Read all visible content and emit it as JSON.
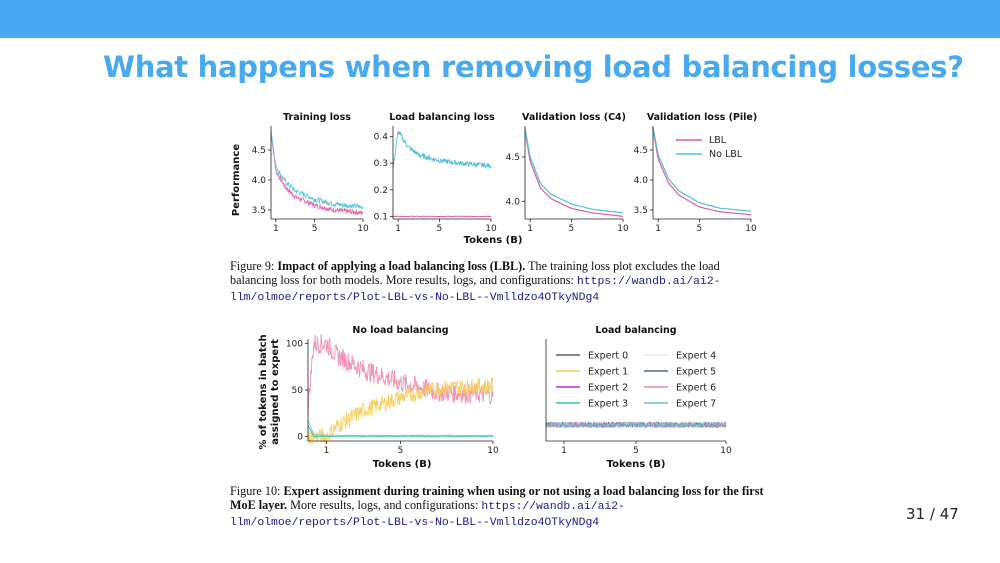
{
  "slide": {
    "title": "What happens when removing load balancing losses?",
    "page_current": "31",
    "page_sep": "/",
    "page_total": "47"
  },
  "figure9": {
    "caption_label": "Figure 9:",
    "caption_bold": "Impact of applying a load balancing loss (LBL).",
    "caption_text": "The training loss plot excludes the load balancing loss for both models. More results, logs, and configurations:",
    "caption_url": "https://wandb.ai/ai2-llm/olmoe/reports/Plot-LBL-vs-No-LBL--Vmlldzo4OTkyNDg4",
    "ylabel": "Performance",
    "xlabel": "Tokens (B)",
    "legend": [
      {
        "name": "LBL",
        "color": "#e05a9e"
      },
      {
        "name": "No LBL",
        "color": "#4fc0dc"
      }
    ]
  },
  "figure10": {
    "caption_label": "Figure 10:",
    "caption_bold": "Expert assignment during training when using or not using a load balancing loss for the first MoE layer.",
    "caption_text": "More results, logs, and configurations:",
    "caption_url": "https://wandb.ai/ai2-llm/olmoe/reports/Plot-LBL-vs-No-LBL--Vmlldzo4OTkyNDg4",
    "ylabel_line1": "% of tokens in batch",
    "ylabel_line2": "assigned to expert",
    "xlabel": "Tokens (B)",
    "legend": [
      {
        "name": "Expert 0",
        "color": "#5b5b86"
      },
      {
        "name": "Expert 4",
        "color": "#ecebec"
      },
      {
        "name": "Expert 1",
        "color": "#f6cc57"
      },
      {
        "name": "Expert 5",
        "color": "#4d6b86"
      },
      {
        "name": "Expert 2",
        "color": "#c42fd6"
      },
      {
        "name": "Expert 6",
        "color": "#ef86ae"
      },
      {
        "name": "Expert 3",
        "color": "#3bbfa5"
      },
      {
        "name": "Expert 7",
        "color": "#5dc4e0"
      }
    ]
  },
  "chart_data": [
    {
      "type": "line",
      "title": "Training loss",
      "x_ticks": [
        "1",
        "5",
        "10"
      ],
      "y_ticks": [
        "3.5",
        "4.0",
        "4.5"
      ],
      "ylim": [
        3.35,
        4.9
      ],
      "x": [
        0.5,
        1,
        2,
        3,
        5,
        7,
        10
      ],
      "series": [
        {
          "name": "LBL",
          "color": "#e05a9e",
          "values": [
            4.8,
            4.15,
            3.88,
            3.72,
            3.58,
            3.5,
            3.45
          ]
        },
        {
          "name": "No LBL",
          "color": "#4fc0dc",
          "values": [
            4.85,
            4.22,
            3.97,
            3.82,
            3.68,
            3.6,
            3.55
          ]
        }
      ]
    },
    {
      "type": "line",
      "title": "Load balancing loss",
      "x_ticks": [
        "1",
        "5",
        "10"
      ],
      "y_ticks": [
        "0.1",
        "0.2",
        "0.3",
        "0.4"
      ],
      "ylim": [
        0.09,
        0.44
      ],
      "x": [
        0.5,
        1,
        2,
        3,
        5,
        7,
        10
      ],
      "series": [
        {
          "name": "LBL",
          "color": "#e05a9e",
          "values": [
            0.1,
            0.1,
            0.1,
            0.1,
            0.1,
            0.1,
            0.1
          ]
        },
        {
          "name": "No LBL",
          "color": "#4fc0dc",
          "values": [
            0.28,
            0.42,
            0.36,
            0.33,
            0.31,
            0.3,
            0.29
          ]
        }
      ]
    },
    {
      "type": "line",
      "title": "Validation loss (C4)",
      "x_ticks": [
        "1",
        "5",
        "10"
      ],
      "y_ticks": [
        "4.0",
        "4.5"
      ],
      "ylim": [
        3.8,
        4.85
      ],
      "x": [
        0.5,
        1,
        2,
        3,
        5,
        7,
        10
      ],
      "series": [
        {
          "name": "LBL",
          "color": "#e05a9e",
          "values": [
            4.8,
            4.45,
            4.15,
            4.03,
            3.92,
            3.87,
            3.83
          ]
        },
        {
          "name": "No LBL",
          "color": "#4fc0dc",
          "values": [
            4.82,
            4.5,
            4.2,
            4.08,
            3.97,
            3.91,
            3.87
          ]
        }
      ]
    },
    {
      "type": "line",
      "title": "Validation loss (Pile)",
      "x_ticks": [
        "1",
        "5",
        "10"
      ],
      "y_ticks": [
        "3.5",
        "4.0",
        "4.5"
      ],
      "ylim": [
        3.35,
        4.9
      ],
      "x": [
        0.5,
        1,
        2,
        3,
        5,
        7,
        10
      ],
      "series": [
        {
          "name": "LBL",
          "color": "#e05a9e",
          "values": [
            4.85,
            4.35,
            3.95,
            3.75,
            3.55,
            3.47,
            3.42
          ]
        },
        {
          "name": "No LBL",
          "color": "#4fc0dc",
          "values": [
            4.88,
            4.42,
            4.02,
            3.82,
            3.62,
            3.53,
            3.48
          ]
        }
      ]
    },
    {
      "type": "line",
      "title": "No load balancing",
      "x_ticks": [
        "1",
        "5",
        "10"
      ],
      "y_ticks": [
        "0",
        "50",
        "100"
      ],
      "ylim": [
        -5,
        105
      ],
      "x": [
        0,
        0.3,
        1,
        1.5,
        3,
        5,
        7,
        10
      ],
      "series": [
        {
          "name": "Expert 6",
          "color": "#ef86ae",
          "values": [
            30,
            100,
            100,
            88,
            72,
            58,
            48,
            45
          ]
        },
        {
          "name": "Expert 1",
          "color": "#f6cc57",
          "values": [
            0,
            0,
            0,
            10,
            28,
            42,
            52,
            55
          ]
        },
        {
          "name": "Expert 3",
          "color": "#3bbfa5",
          "values": [
            12,
            0,
            0,
            0,
            0,
            0,
            0,
            0
          ]
        },
        {
          "name": "Expert 7",
          "color": "#5dc4e0",
          "values": [
            18,
            2,
            1,
            1,
            1,
            1,
            1,
            1
          ]
        }
      ]
    },
    {
      "type": "line",
      "title": "Load balancing",
      "x_ticks": [
        "1",
        "5",
        "10"
      ],
      "ylim": [
        -5,
        105
      ],
      "x": [
        0,
        10
      ],
      "series": [
        {
          "name": "Expert 0",
          "color": "#5b5b86",
          "values": [
            12.5,
            12.5
          ]
        },
        {
          "name": "Expert 1",
          "color": "#f6cc57",
          "values": [
            12.5,
            12.5
          ]
        },
        {
          "name": "Expert 2",
          "color": "#c42fd6",
          "values": [
            12.5,
            12.5
          ]
        },
        {
          "name": "Expert 3",
          "color": "#3bbfa5",
          "values": [
            12.5,
            12.5
          ]
        },
        {
          "name": "Expert 4",
          "color": "#ecebec",
          "values": [
            12.5,
            12.5
          ]
        },
        {
          "name": "Expert 5",
          "color": "#4d6b86",
          "values": [
            12.5,
            12.5
          ]
        },
        {
          "name": "Expert 6",
          "color": "#ef86ae",
          "values": [
            12.5,
            12.5
          ]
        },
        {
          "name": "Expert 7",
          "color": "#5dc4e0",
          "values": [
            12.5,
            12.5
          ]
        }
      ]
    }
  ]
}
